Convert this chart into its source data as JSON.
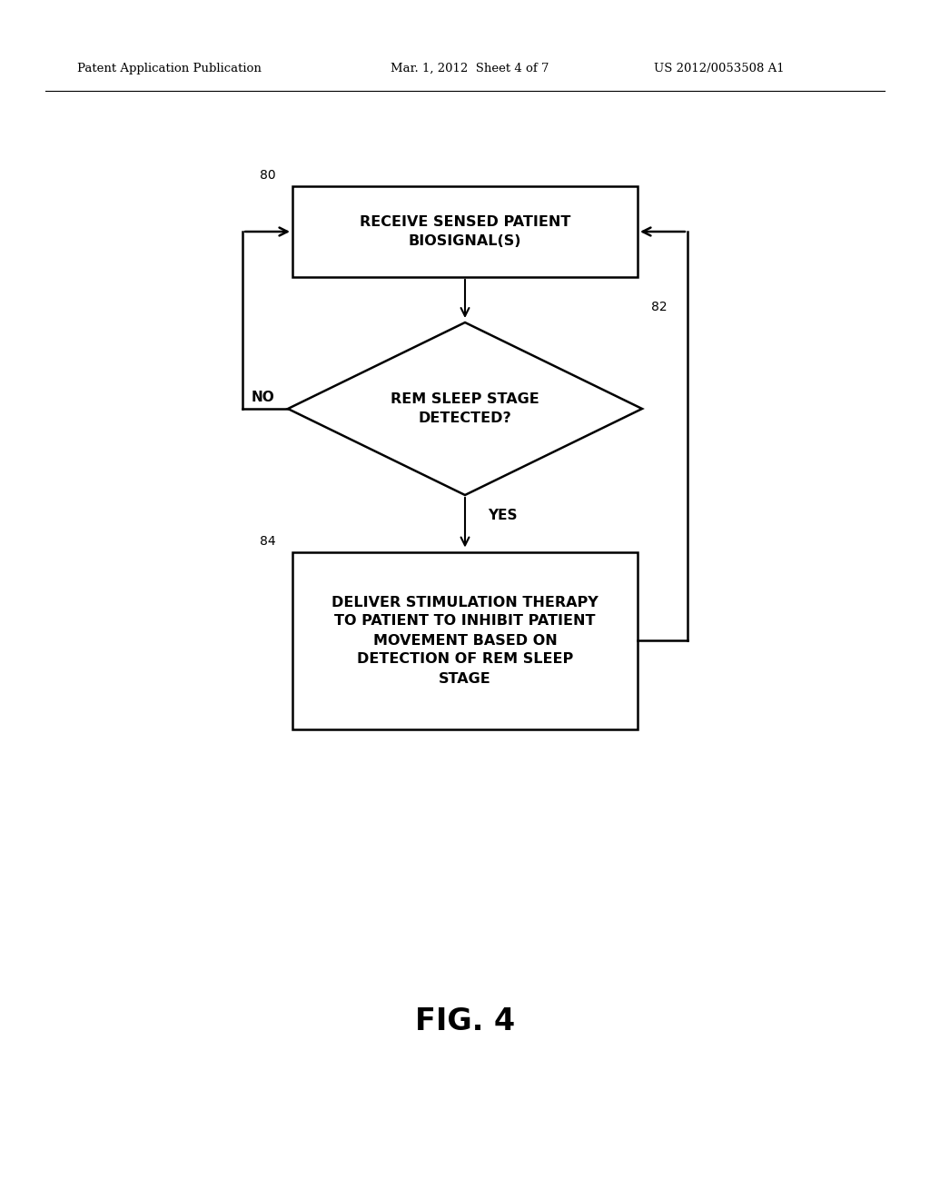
{
  "bg_color": "#ffffff",
  "header_left": "Patent Application Publication",
  "header_mid": "Mar. 1, 2012  Sheet 4 of 7",
  "header_right": "US 2012/0053508 A1",
  "header_fontsize": 9.5,
  "fig_label": "FIG. 4",
  "fig_label_fontsize": 24,
  "box1_text": "RECEIVE SENSED PATIENT\nBIOSIGNAL(S)",
  "box1_label": "80",
  "box2_text": "REM SLEEP STAGE\nDETECTED?",
  "box2_label": "82",
  "box3_text": "DELIVER STIMULATION THERAPY\nTO PATIENT TO INHIBIT PATIENT\nMOVEMENT BASED ON\nDETECTION OF REM SLEEP\nSTAGE",
  "box3_label": "84",
  "yes_label": "YES",
  "no_label": "NO",
  "flow_fontsize": 11.5,
  "label_fontsize": 10,
  "yn_fontsize": 11
}
